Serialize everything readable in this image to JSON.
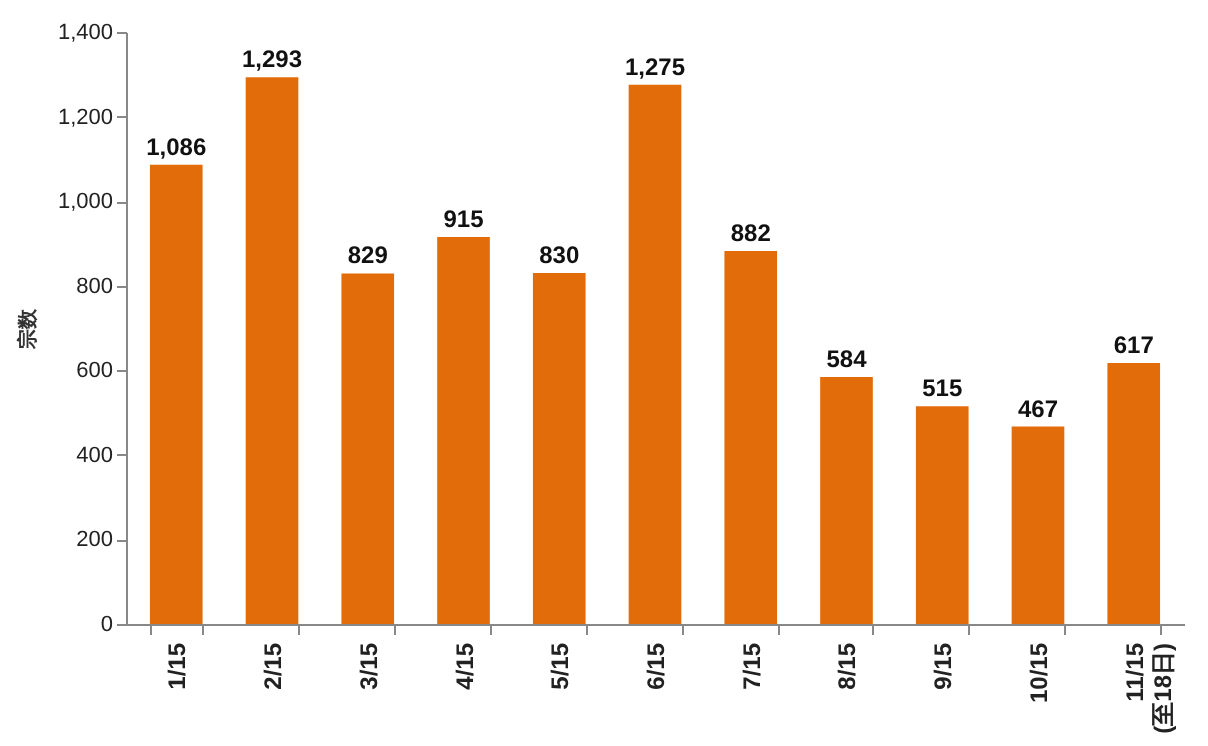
{
  "chart_data": {
    "type": "bar",
    "ylabel": "宗数",
    "categories": [
      "1/15",
      "2/15",
      "3/15",
      "4/15",
      "5/15",
      "6/15",
      "7/15",
      "8/15",
      "9/15",
      "10/15",
      "11/15\n(至18日)"
    ],
    "values": [
      1086,
      1293,
      829,
      915,
      830,
      1275,
      882,
      584,
      515,
      467,
      617
    ],
    "value_labels": [
      "1,086",
      "1,293",
      "829",
      "915",
      "830",
      "1,275",
      "882",
      "584",
      "515",
      "467",
      "617"
    ],
    "color": "#e36c0a",
    "ylim": [
      0,
      1400
    ],
    "yticks": [
      0,
      200,
      400,
      600,
      800,
      {
        "value": 1000,
        "label": "1,000"
      },
      {
        "value": 1200,
        "label": "1,200"
      },
      {
        "value": 1400,
        "label": "1,400"
      }
    ],
    "grid": false
  }
}
